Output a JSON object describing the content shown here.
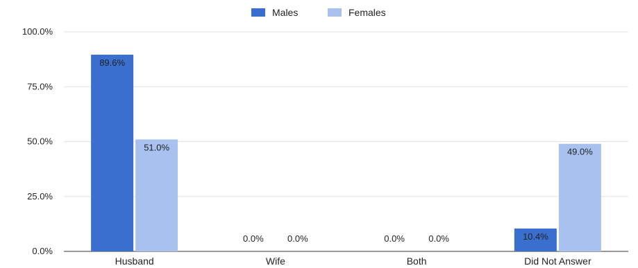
{
  "chart_data": {
    "type": "bar",
    "title": "",
    "xlabel": "",
    "ylabel": "",
    "categories": [
      "Husband",
      "Wife",
      "Both",
      "Did Not Answer"
    ],
    "series": [
      {
        "name": "Males",
        "color": "#3a6fd0",
        "values": [
          89.6,
          0.0,
          0.0,
          10.4
        ],
        "labels": [
          "89.6%",
          "0.0%",
          "0.0%",
          "10.4%"
        ]
      },
      {
        "name": "Females",
        "color": "#a9c1ef",
        "values": [
          51.0,
          0.0,
          0.0,
          49.0
        ],
        "labels": [
          "51.0%",
          "0.0%",
          "0.0%",
          "49.0%"
        ]
      }
    ],
    "yticks": [
      "0.0%",
      "25.0%",
      "50.0%",
      "75.0%",
      "100.0%"
    ],
    "ylim": [
      0,
      100
    ],
    "grid": true,
    "legend_position": "top-center"
  }
}
